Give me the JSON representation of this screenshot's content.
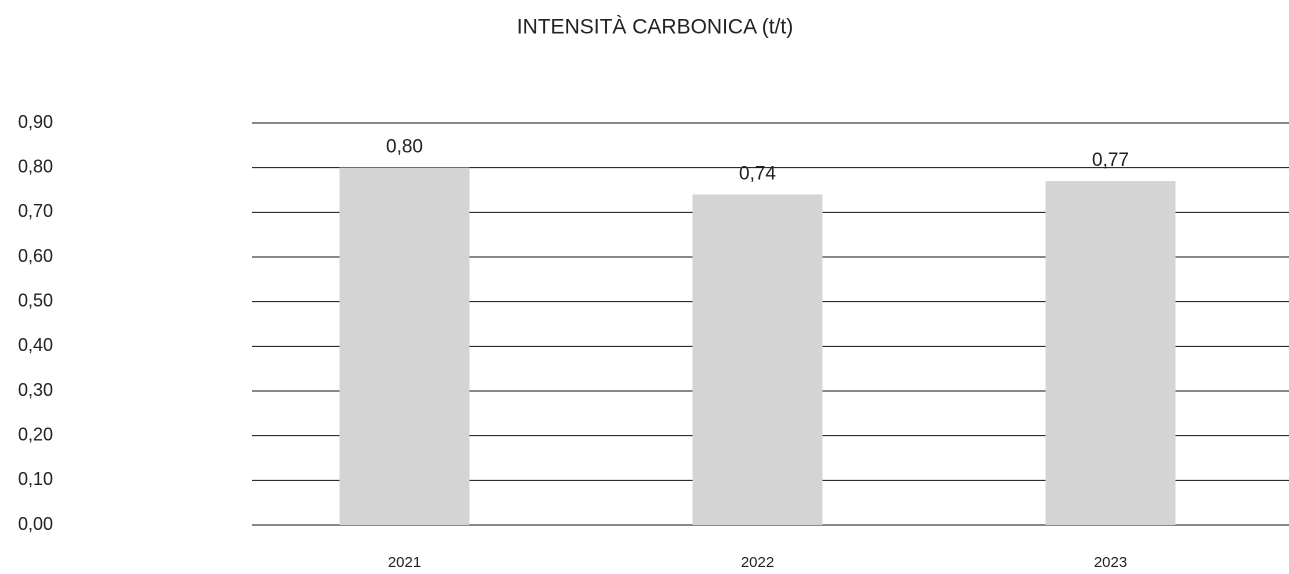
{
  "chart_data": {
    "type": "bar",
    "title": "INTENSITÀ CARBONICA (t/t)",
    "categories": [
      "2021",
      "2022",
      "2023"
    ],
    "values": [
      0.8,
      0.74,
      0.77
    ],
    "value_labels": [
      "0,80",
      "0,74",
      "0,77"
    ],
    "color": "#d4d4d4",
    "ylim": [
      0,
      0.9
    ],
    "yticks": [
      {
        "value": 0,
        "label": "0,00"
      },
      {
        "value": 0.1,
        "label": "0,10"
      },
      {
        "value": 0.2,
        "label": "0,20"
      },
      {
        "value": 0.3,
        "label": "0,30"
      },
      {
        "value": 0.4,
        "label": "0,40"
      },
      {
        "value": 0.5,
        "label": "0,50"
      },
      {
        "value": 0.6,
        "label": "0,60"
      },
      {
        "value": 0.7,
        "label": "0,70"
      },
      {
        "value": 0.8,
        "label": "0,80"
      },
      {
        "value": 0.9,
        "label": "0,90"
      }
    ],
    "grid": true
  }
}
